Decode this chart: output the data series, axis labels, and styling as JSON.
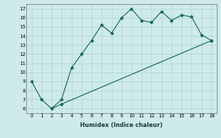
{
  "xlabel": "Humidex (Indice chaleur)",
  "ylabel": "",
  "bg_color": "#ceeaea",
  "grid_color": "#b8d8d8",
  "line_color": "#1a6b5a",
  "line1_x": [
    0,
    1,
    2,
    3,
    4,
    5,
    6,
    7,
    8,
    9,
    10,
    11,
    12,
    13,
    14,
    15,
    16,
    17,
    18
  ],
  "line1_y": [
    9.0,
    7.0,
    6.0,
    7.0,
    10.5,
    12.0,
    13.5,
    15.2,
    14.3,
    16.0,
    17.0,
    15.7,
    15.5,
    16.7,
    15.7,
    16.3,
    16.1,
    14.1,
    13.5
  ],
  "line2_x": [
    2,
    3,
    18
  ],
  "line2_y": [
    6.0,
    6.5,
    13.5
  ],
  "xlim": [
    -0.5,
    18.5
  ],
  "ylim": [
    5.5,
    17.5
  ],
  "xticks": [
    0,
    1,
    2,
    3,
    4,
    5,
    6,
    7,
    8,
    9,
    10,
    11,
    12,
    13,
    14,
    15,
    16,
    17,
    18
  ],
  "yticks": [
    6,
    7,
    8,
    9,
    10,
    11,
    12,
    13,
    14,
    15,
    16,
    17
  ],
  "xlabel_fontsize": 6.0,
  "tick_fontsize": 5.0
}
